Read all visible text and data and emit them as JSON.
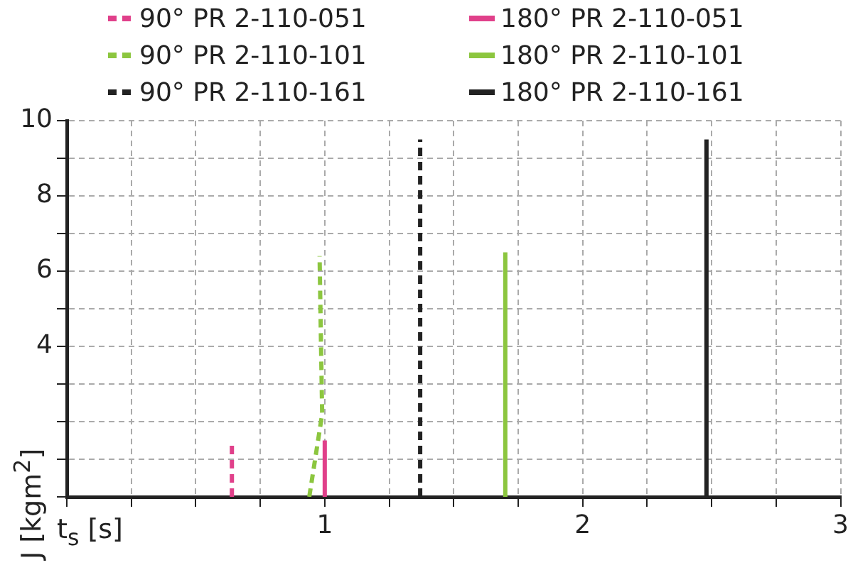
{
  "chart_data": {
    "type": "line",
    "xlabel": "t$_{s}$ [s]",
    "ylabel": "J [kgm$^{2}$]",
    "xlim": [
      0,
      3
    ],
    "ylim": [
      0,
      10
    ],
    "xticks": [
      {
        "value": 0,
        "label": null
      },
      {
        "value": 0.25,
        "label": null
      },
      {
        "value": 0.5,
        "label": null
      },
      {
        "value": 0.75,
        "label": null
      },
      1,
      {
        "value": 1.25,
        "label": null
      },
      {
        "value": 1.5,
        "label": null
      },
      {
        "value": 1.75,
        "label": null
      },
      2,
      {
        "value": 2.25,
        "label": null
      },
      {
        "value": 2.5,
        "label": null
      },
      {
        "value": 2.75,
        "label": null
      },
      3
    ],
    "yticks": [
      {
        "value": 0,
        "label": null
      },
      {
        "value": 1,
        "label": null
      },
      {
        "value": 2,
        "label": null
      },
      {
        "value": 3,
        "label": null
      },
      4,
      {
        "value": 5,
        "label": null
      },
      6,
      {
        "value": 7,
        "label": null
      },
      8,
      {
        "value": 9,
        "label": null
      },
      10
    ],
    "grid": true,
    "legend": "top",
    "marker": "none",
    "series": [
      {
        "name": "90° PR 2-110-051",
        "color": "#e0408a",
        "line_style": "dashed",
        "x": [
          0.64,
          0.64
        ],
        "values": [
          0,
          1.5
        ]
      },
      {
        "name": "180° PR 2-110-051",
        "color": "#e0408a",
        "line_style": "solid",
        "x": [
          1.0,
          1.0
        ],
        "values": [
          0,
          1.5
        ]
      },
      {
        "name": "90° PR 2-110-101",
        "color": "#8cc63f",
        "line_style": "dashed",
        "x": [
          0.94,
          0.99,
          0.98
        ],
        "values": [
          0,
          2.2,
          6.4
        ]
      },
      {
        "name": "180° PR 2-110-101",
        "color": "#8cc63f",
        "line_style": "solid",
        "x": [
          1.7,
          1.7
        ],
        "values": [
          0,
          6.5
        ]
      },
      {
        "name": "90° PR 2-110-161",
        "color": "#222222",
        "line_style": "dashed",
        "x": [
          1.37,
          1.37
        ],
        "values": [
          0,
          9.5
        ]
      },
      {
        "name": "180° PR 2-110-161",
        "color": "#222222",
        "line_style": "solid",
        "x": [
          2.48,
          2.48
        ],
        "values": [
          0,
          9.5
        ]
      }
    ]
  }
}
